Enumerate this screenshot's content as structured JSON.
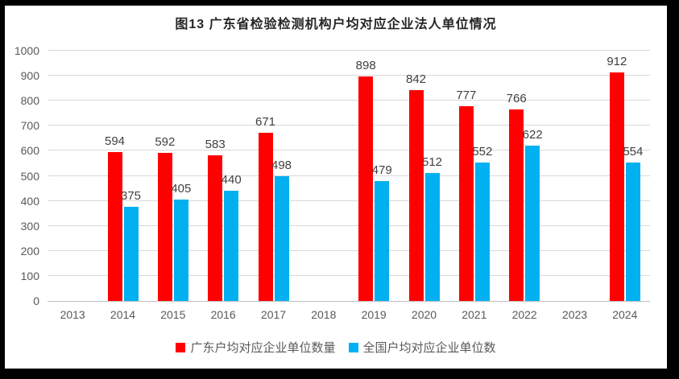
{
  "title": "图13 广东省检验检测机构户均对应企业法人单位情况",
  "chart_data": {
    "type": "bar",
    "title": "图13 广东省检验检测机构户均对应企业法人单位情况",
    "categories": [
      "2013",
      "2014",
      "2015",
      "2016",
      "2017",
      "2018",
      "2019",
      "2020",
      "2021",
      "2022",
      "2023",
      "2024"
    ],
    "series": [
      {
        "name": "广东户均对应企业单位数量",
        "color": "#FF0000",
        "values": [
          null,
          594,
          592,
          583,
          671,
          null,
          898,
          842,
          777,
          766,
          null,
          912
        ]
      },
      {
        "name": "全国户均对应企业单位数",
        "color": "#00B0F0",
        "values": [
          null,
          375,
          405,
          440,
          498,
          null,
          479,
          512,
          552,
          622,
          null,
          554
        ]
      }
    ],
    "xlabel": "",
    "ylabel": "",
    "ylim": [
      0,
      1000
    ],
    "yticks": [
      0,
      100,
      200,
      300,
      400,
      500,
      600,
      700,
      800,
      900,
      1000
    ],
    "grid": true,
    "data_labels": true,
    "legend_position": "bottom"
  },
  "colors": {
    "series_guangdong": "#FF0000",
    "series_national": "#00B0F0",
    "gridline": "#d9d9d9",
    "axis_line": "#bfbfbf",
    "data_label": "#404040",
    "tick_label": "#595959",
    "title_text": "#262626",
    "frame": "#000000",
    "background": "#ffffff"
  }
}
